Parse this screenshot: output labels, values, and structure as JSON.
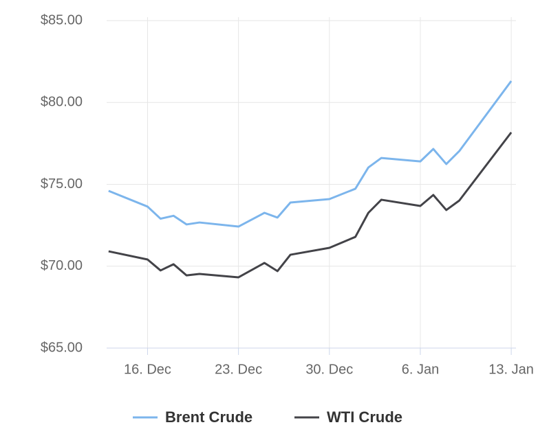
{
  "chart_data": {
    "type": "line",
    "x": [
      13,
      16,
      17,
      18,
      19,
      20,
      23,
      25,
      26,
      27,
      30,
      32,
      33,
      34,
      37,
      38,
      39,
      40,
      44
    ],
    "series": [
      {
        "name": "Brent Crude",
        "color": "#7cb5ec",
        "values": [
          74.6,
          73.64,
          72.9,
          73.08,
          72.55,
          72.67,
          72.42,
          73.26,
          72.97,
          73.89,
          74.1,
          74.73,
          76.03,
          76.61,
          76.4,
          77.16,
          76.24,
          77.03,
          81.31
        ]
      },
      {
        "name": "WTI Crude",
        "color": "#434348",
        "values": [
          70.91,
          70.41,
          69.74,
          70.12,
          69.44,
          69.53,
          69.32,
          70.2,
          69.7,
          70.7,
          71.12,
          71.79,
          73.26,
          74.06,
          73.68,
          74.35,
          73.43,
          74.01,
          78.17
        ]
      }
    ],
    "xlim": [
      12.85,
      44.1
    ],
    "xticks": [
      {
        "value": 16,
        "label": "16. Dec"
      },
      {
        "value": 23,
        "label": "23. Dec"
      },
      {
        "value": 30,
        "label": "30. Dec"
      },
      {
        "value": 37,
        "label": "6. Jan"
      },
      {
        "value": 44,
        "label": "13. Jan"
      }
    ],
    "ylim": [
      65,
      85
    ],
    "yticks": [
      {
        "value": 65,
        "label": "$65.00"
      },
      {
        "value": 70,
        "label": "$70.00"
      },
      {
        "value": 75,
        "label": "$75.00"
      },
      {
        "value": 80,
        "label": "$80.00"
      },
      {
        "value": 85,
        "label": "$85.00"
      }
    ],
    "grid": true,
    "legend": "bottom"
  }
}
